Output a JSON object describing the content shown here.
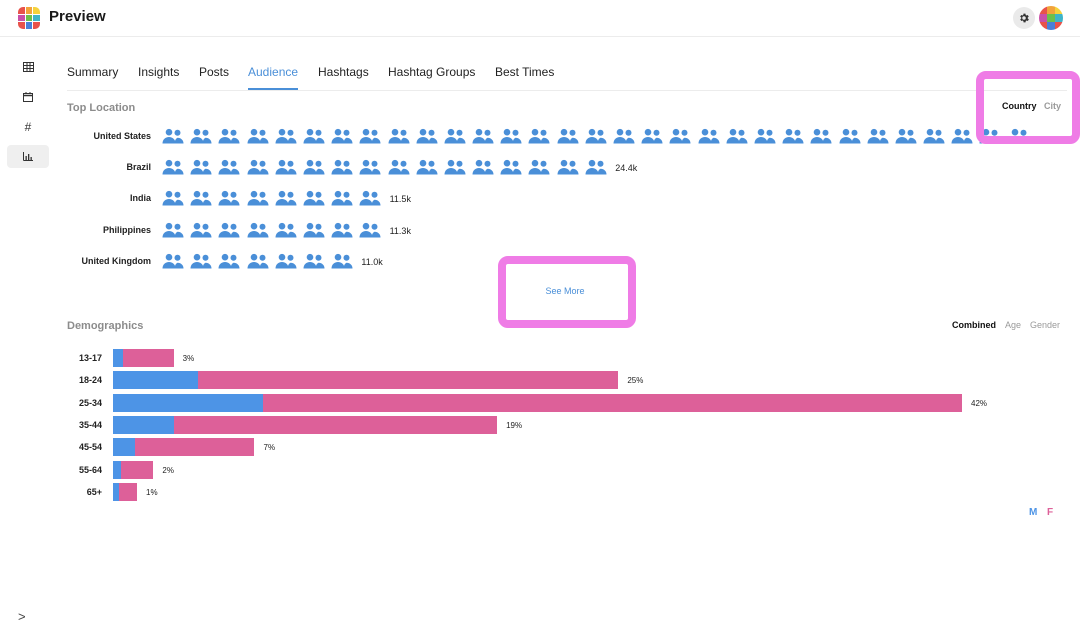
{
  "app": {
    "title": "Preview",
    "logo_icon": "preview-logo",
    "settings_icon": "gear-icon",
    "avatar_icon": "avatar-grid"
  },
  "sidebar": {
    "items": [
      {
        "icon": "grid-icon",
        "glyph": "▦",
        "active": false
      },
      {
        "icon": "calendar-icon",
        "glyph": "▭",
        "active": false
      },
      {
        "icon": "hashtag-icon",
        "glyph": "#",
        "active": false
      },
      {
        "icon": "bar-chart-icon",
        "glyph": "▥",
        "active": true
      }
    ],
    "expand_glyph": ">"
  },
  "tabs": [
    {
      "label": "Summary",
      "active": false
    },
    {
      "label": "Insights",
      "active": false
    },
    {
      "label": "Posts",
      "active": false
    },
    {
      "label": "Audience",
      "active": true
    },
    {
      "label": "Hashtags",
      "active": false
    },
    {
      "label": "Hashtag Groups",
      "active": false
    },
    {
      "label": "Best Times",
      "active": false
    }
  ],
  "top_location": {
    "title": "Top Location",
    "toggle": [
      {
        "label": "Country",
        "active": true
      },
      {
        "label": "City",
        "active": false
      }
    ],
    "rows": [
      {
        "name": "United States",
        "icons": 31,
        "value": ""
      },
      {
        "name": "Brazil",
        "icons": 16,
        "value": "24.4k"
      },
      {
        "name": "India",
        "icons": 8,
        "value": "11.5k"
      },
      {
        "name": "Philippines",
        "icons": 8,
        "value": "11.3k"
      },
      {
        "name": "United Kingdom",
        "icons": 7,
        "value": "11.0k"
      }
    ],
    "see_more": "See More",
    "icon": "user-group-icon"
  },
  "demographics": {
    "title": "Demographics",
    "toggle": [
      {
        "label": "Combined",
        "active": true
      },
      {
        "label": "Age",
        "active": false
      },
      {
        "label": "Gender",
        "active": false
      }
    ],
    "rows": [
      {
        "age": "13-17",
        "total": 3,
        "male": 0.5,
        "pct": "3%"
      },
      {
        "age": "18-24",
        "total": 25,
        "male": 4.2,
        "pct": "25%"
      },
      {
        "age": "25-34",
        "total": 42,
        "male": 7.4,
        "pct": "42%"
      },
      {
        "age": "35-44",
        "total": 19,
        "male": 3.0,
        "pct": "19%"
      },
      {
        "age": "45-54",
        "total": 7,
        "male": 1.1,
        "pct": "7%"
      },
      {
        "age": "55-64",
        "total": 2,
        "male": 0.4,
        "pct": "2%"
      },
      {
        "age": "65+",
        "total": 1,
        "male": 0.3,
        "pct": "1%"
      }
    ],
    "legend": {
      "male": "M",
      "female": "F"
    },
    "colors": {
      "male": "#4d94e6",
      "female": "#dd6099"
    }
  },
  "colors": {
    "accent": "#4a8fd8",
    "highlight": "#ef7ce6"
  }
}
